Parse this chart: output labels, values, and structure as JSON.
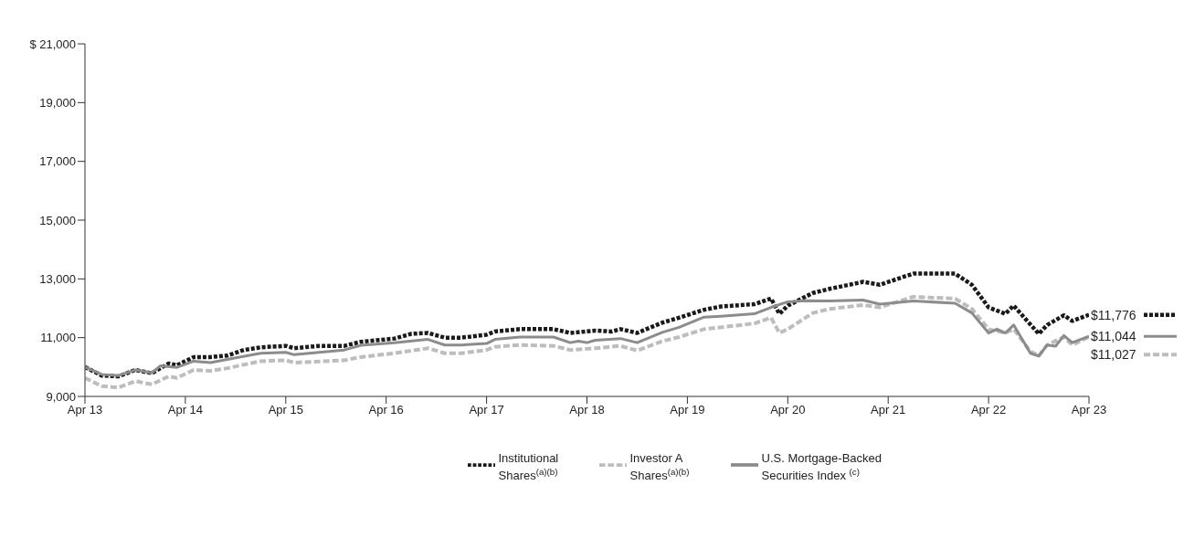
{
  "chart_data": {
    "type": "line",
    "series": [
      {
        "name": "Institutional Shares$^{(a)(b)}$",
        "color": "#1a1a1a",
        "line_style": "dotted",
        "x": [
          "2013-04",
          "2013-06",
          "2013-08",
          "2013-10",
          "2013-12",
          "2014-02",
          "2014-03",
          "2014-05",
          "2014-07",
          "2014-09",
          "2014-11",
          "2015-01",
          "2015-04",
          "2015-05",
          "2015-08",
          "2015-11",
          "2016-01",
          "2016-05",
          "2016-07",
          "2016-09",
          "2016-11",
          "2017-01",
          "2017-04",
          "2017-05",
          "2017-08",
          "2017-12",
          "2018-02",
          "2018-05",
          "2018-07",
          "2018-08",
          "2018-10",
          "2019-01",
          "2019-03",
          "2019-06",
          "2019-08",
          "2019-12",
          "2020-02",
          "2020-03",
          "2020-04",
          "2020-07",
          "2020-09",
          "2021-01",
          "2021-03",
          "2021-07",
          "2021-12",
          "2022-02",
          "2022-04",
          "2022-06",
          "2022-07",
          "2022-10",
          "2022-11",
          "2023-01",
          "2023-02",
          "2023-04"
        ],
        "values": [
          10000,
          9710,
          9680,
          9900,
          9790,
          10120,
          10060,
          10340,
          10340,
          10390,
          10580,
          10670,
          10720,
          10640,
          10720,
          10720,
          10860,
          10970,
          11130,
          11160,
          11000,
          11000,
          11100,
          11210,
          11290,
          11290,
          11160,
          11240,
          11210,
          11290,
          11160,
          11510,
          11680,
          11950,
          12060,
          12140,
          12330,
          11810,
          12090,
          12520,
          12660,
          12900,
          12800,
          13180,
          13180,
          12800,
          12030,
          11810,
          12090,
          11130,
          11430,
          11760,
          11570,
          11776
        ]
      },
      {
        "name": "Investor A Shares$^{(a)(b)}$",
        "color": "#bdbdbd",
        "line_style": "dashed",
        "x": [
          "2013-04",
          "2013-06",
          "2013-08",
          "2013-10",
          "2013-12",
          "2014-02",
          "2014-03",
          "2014-05",
          "2014-07",
          "2014-09",
          "2015-01",
          "2015-04",
          "2015-05",
          "2015-11",
          "2016-01",
          "2016-05",
          "2016-09",
          "2016-11",
          "2017-01",
          "2017-04",
          "2017-05",
          "2017-08",
          "2017-12",
          "2018-02",
          "2018-05",
          "2018-08",
          "2018-10",
          "2019-01",
          "2019-03",
          "2019-06",
          "2019-12",
          "2020-02",
          "2020-03",
          "2020-04",
          "2020-07",
          "2020-09",
          "2021-01",
          "2021-03",
          "2021-07",
          "2021-12",
          "2022-02",
          "2022-04",
          "2022-06",
          "2022-07",
          "2022-09",
          "2022-10",
          "2022-11",
          "2023-01",
          "2023-02",
          "2023-04"
        ],
        "values": [
          9630,
          9350,
          9300,
          9520,
          9410,
          9680,
          9630,
          9900,
          9870,
          9960,
          10200,
          10230,
          10150,
          10230,
          10340,
          10470,
          10640,
          10470,
          10470,
          10580,
          10690,
          10750,
          10720,
          10580,
          10640,
          10720,
          10560,
          10880,
          11020,
          11290,
          11480,
          11680,
          11160,
          11290,
          11840,
          11980,
          12110,
          12030,
          12390,
          12330,
          11980,
          11290,
          11160,
          11290,
          10530,
          10390,
          10750,
          11020,
          10750,
          11027
        ]
      },
      {
        "name": "U.S. Mortgage-Backed Securities Index $^{(c)}$",
        "color": "#8c8c8c",
        "line_style": "solid",
        "x": [
          "2013-04",
          "2013-06",
          "2013-08",
          "2013-10",
          "2013-12",
          "2014-01",
          "2014-03",
          "2014-05",
          "2014-07",
          "2014-09",
          "2015-01",
          "2015-04",
          "2015-05",
          "2015-11",
          "2016-01",
          "2016-05",
          "2016-09",
          "2016-11",
          "2017-01",
          "2017-04",
          "2017-05",
          "2017-08",
          "2017-12",
          "2018-02",
          "2018-03",
          "2018-04",
          "2018-05",
          "2018-08",
          "2018-10",
          "2019-01",
          "2019-03",
          "2019-06",
          "2019-08",
          "2019-12",
          "2020-02",
          "2020-04",
          "2020-06",
          "2020-09",
          "2021-01",
          "2021-03",
          "2021-07",
          "2021-12",
          "2022-02",
          "2022-04",
          "2022-05",
          "2022-06",
          "2022-07",
          "2022-09",
          "2022-10",
          "2022-11",
          "2022-12",
          "2023-01",
          "2023-02",
          "2023-04"
        ],
        "values": [
          10000,
          9750,
          9710,
          9900,
          9800,
          10040,
          9990,
          10200,
          10150,
          10260,
          10470,
          10500,
          10420,
          10580,
          10740,
          10830,
          10940,
          10750,
          10750,
          10800,
          10940,
          11020,
          11020,
          10830,
          10880,
          10830,
          10910,
          10970,
          10830,
          11180,
          11350,
          11700,
          11730,
          11810,
          12030,
          12220,
          12260,
          12250,
          12280,
          12140,
          12250,
          12170,
          11840,
          11160,
          11290,
          11160,
          11430,
          10470,
          10370,
          10750,
          10710,
          11070,
          10830,
          11044
        ]
      }
    ],
    "xlim": [
      "2013-04",
      "2023-04"
    ],
    "xticks": [
      {
        "value": "2013-04",
        "label": "Apr 13"
      },
      {
        "value": "2014-04",
        "label": "Apr 14"
      },
      {
        "value": "2015-04",
        "label": "Apr 15"
      },
      {
        "value": "2016-04",
        "label": "Apr 16"
      },
      {
        "value": "2017-04",
        "label": "Apr 17"
      },
      {
        "value": "2018-04",
        "label": "Apr 18"
      },
      {
        "value": "2019-04",
        "label": "Apr 19"
      },
      {
        "value": "2020-04",
        "label": "Apr 20"
      },
      {
        "value": "2021-04",
        "label": "Apr 21"
      },
      {
        "value": "2022-04",
        "label": "Apr 22"
      },
      {
        "value": "2023-04",
        "label": "Apr 23"
      }
    ],
    "ylim": [
      9000,
      21000
    ],
    "yticks": [
      {
        "value": 9000,
        "label": "9,000"
      },
      {
        "value": 11000,
        "label": "11,000"
      },
      {
        "value": 13000,
        "label": "13,000"
      },
      {
        "value": 15000,
        "label": "15,000"
      },
      {
        "value": 17000,
        "label": "17,000"
      },
      {
        "value": 19000,
        "label": "19,000"
      },
      {
        "value": 21000,
        "label": "$  21,000"
      }
    ],
    "annotations": [
      {
        "text": "$11,776",
        "x": "2023-04",
        "y": 11776
      },
      {
        "text": "$11,044",
        "x": "2023-04",
        "y": 11044
      },
      {
        "text": "$11,027",
        "x": "2023-04",
        "y": 11027
      }
    ],
    "grid": false,
    "legend": "bottom"
  }
}
